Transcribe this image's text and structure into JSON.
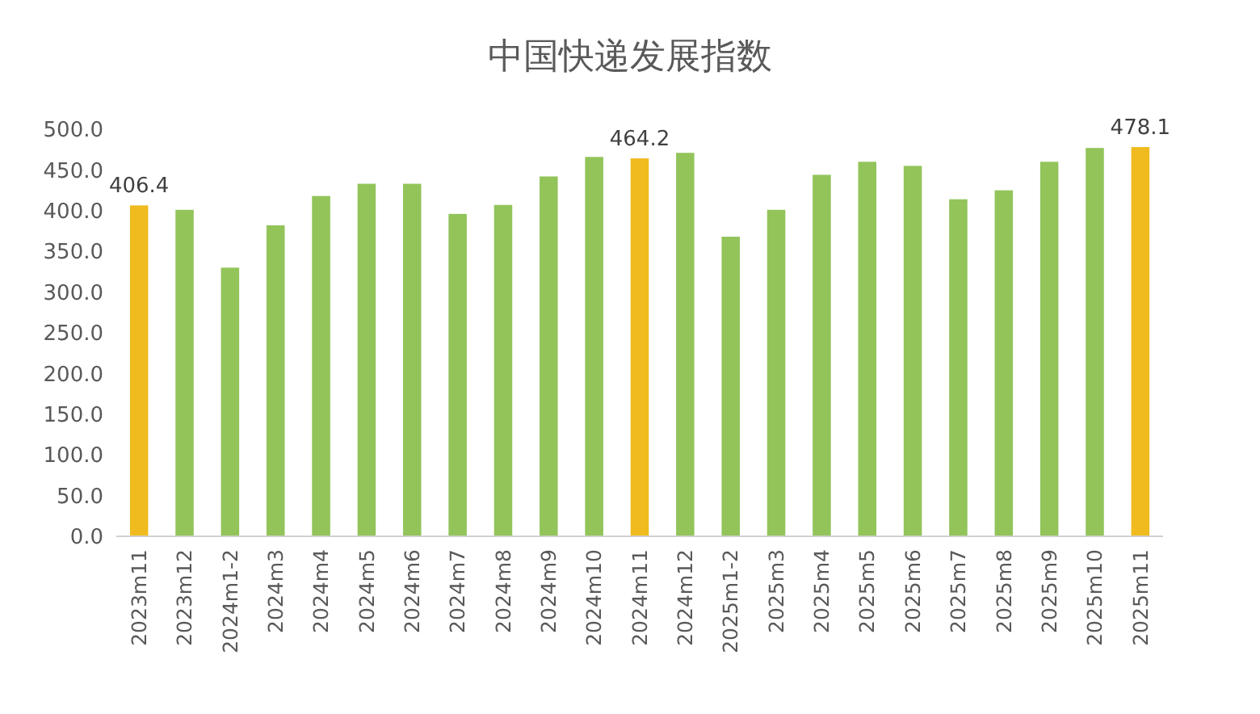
{
  "chart_data": {
    "type": "bar",
    "title": "中国快递发展指数",
    "categories": [
      "2023m11",
      "2023m12",
      "2024m1-2",
      "2024m3",
      "2024m4",
      "2024m5",
      "2024m6",
      "2024m7",
      "2024m8",
      "2024m9",
      "2024m10",
      "2024m11",
      "2024m12",
      "2025m1-2",
      "2025m3",
      "2025m4",
      "2025m5",
      "2025m6",
      "2025m7",
      "2025m8",
      "2025m9",
      "2025m10",
      "2025m11"
    ],
    "values": [
      406.4,
      401,
      330,
      382,
      418,
      433,
      433,
      396,
      407,
      442,
      466,
      464.2,
      471,
      368,
      401,
      444,
      460,
      455,
      414,
      425,
      460,
      477,
      478.1
    ],
    "value_labels": [
      "406.4",
      null,
      null,
      null,
      null,
      null,
      null,
      null,
      null,
      null,
      null,
      "464.2",
      null,
      null,
      null,
      null,
      null,
      null,
      null,
      null,
      null,
      null,
      "478.1"
    ],
    "colors": [
      "#f0bb1e",
      "#92c45a",
      "#92c45a",
      "#92c45a",
      "#92c45a",
      "#92c45a",
      "#92c45a",
      "#92c45a",
      "#92c45a",
      "#92c45a",
      "#92c45a",
      "#f0bb1e",
      "#92c45a",
      "#92c45a",
      "#92c45a",
      "#92c45a",
      "#92c45a",
      "#92c45a",
      "#92c45a",
      "#92c45a",
      "#92c45a",
      "#92c45a",
      "#f0bb1e"
    ],
    "ylim": [
      0,
      500
    ],
    "yticks": [
      {
        "value": 0,
        "label": "0.0"
      },
      {
        "value": 50,
        "label": "50.0"
      },
      {
        "value": 100,
        "label": "100.0"
      },
      {
        "value": 150,
        "label": "150.0"
      },
      {
        "value": 200,
        "label": "200.0"
      },
      {
        "value": 250,
        "label": "250.0"
      },
      {
        "value": 300,
        "label": "300.0"
      },
      {
        "value": 350,
        "label": "350.0"
      },
      {
        "value": 400,
        "label": "400.0"
      },
      {
        "value": 450,
        "label": "450.0"
      },
      {
        "value": 500,
        "label": "500.0"
      }
    ],
    "grid": false
  }
}
